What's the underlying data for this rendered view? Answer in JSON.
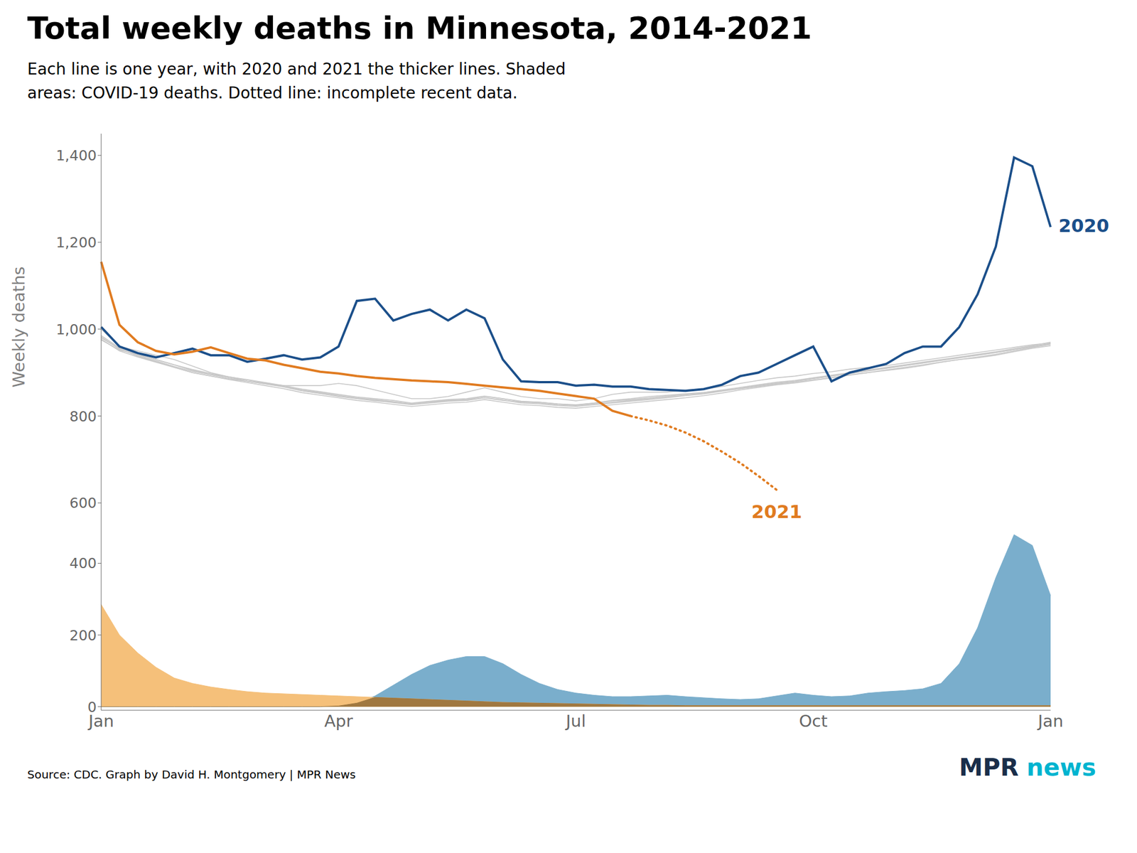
{
  "chart_data": [
    {
      "type": "line",
      "title": "Total weekly deaths in Minnesota, 2014-2021",
      "subtitle": "Each line is one year, with 2020 and 2021 the thicker lines. Shaded\nareas: COVID-19 deaths. Dotted line: incomplete recent data.",
      "ylabel": "Weekly deaths",
      "tick_labels": "y",
      "grid": false,
      "categories": [
        null,
        null,
        null,
        null,
        null,
        null,
        null,
        null,
        null,
        null,
        null,
        null,
        null,
        null,
        null,
        null,
        null,
        null,
        null,
        null,
        null,
        null,
        null,
        null,
        null,
        null,
        null,
        null,
        null,
        null,
        null,
        null,
        null,
        null,
        null,
        null,
        null,
        null,
        null,
        null,
        null,
        null,
        null,
        null,
        null,
        null,
        null,
        null,
        null,
        null,
        null,
        null,
        null
      ],
      "ylim": [
        560,
        1450
      ],
      "yticks": [
        600,
        800,
        {
          "value": 1000,
          "label": "1,000"
        },
        {
          "value": 1200,
          "label": "1,200"
        },
        {
          "value": 1400,
          "label": "1,400"
        }
      ],
      "series": [
        {
          "color": "#c8c8c8",
          "values": [
            1000,
            960,
            950,
            940,
            930,
            915,
            900,
            890,
            880,
            875,
            870,
            870,
            870,
            875,
            870,
            860,
            850,
            840,
            840,
            845,
            855,
            865,
            855,
            845,
            840,
            840,
            835,
            840,
            850,
            855,
            855,
            855,
            860,
            862,
            868,
            875,
            882,
            888,
            892,
            898,
            902,
            908,
            912,
            916,
            922,
            928,
            934,
            940,
            946,
            952,
            958,
            964,
            968
          ]
        },
        {
          "color": "#c8c8c8",
          "values": [
            975,
            952,
            942,
            930,
            918,
            905,
            896,
            890,
            883,
            876,
            868,
            858,
            852,
            845,
            840,
            835,
            832,
            828,
            832,
            836,
            838,
            845,
            840,
            833,
            832,
            828,
            825,
            830,
            836,
            840,
            845,
            848,
            851,
            854,
            858,
            863,
            868,
            874,
            878,
            883,
            888,
            894,
            900,
            905,
            910,
            916,
            924,
            930,
            934,
            940,
            948,
            956,
            962
          ]
        },
        {
          "color": "#c8c8c8",
          "values": [
            980,
            955,
            938,
            925,
            912,
            900,
            892,
            885,
            880,
            874,
            868,
            860,
            854,
            848,
            842,
            838,
            833,
            828,
            832,
            836,
            836,
            842,
            836,
            832,
            830,
            826,
            824,
            828,
            832,
            836,
            840,
            844,
            848,
            852,
            858,
            864,
            870,
            876,
            880,
            886,
            892,
            898,
            904,
            910,
            916,
            922,
            928,
            934,
            940,
            946,
            953,
            960,
            966
          ]
        },
        {
          "color": "#c8c8c8",
          "values": [
            985,
            957,
            943,
            930,
            918,
            907,
            898,
            890,
            884,
            877,
            870,
            862,
            856,
            850,
            844,
            840,
            836,
            830,
            834,
            838,
            840,
            846,
            840,
            834,
            832,
            828,
            826,
            830,
            835,
            838,
            842,
            846,
            850,
            854,
            860,
            866,
            872,
            878,
            882,
            888,
            894,
            900,
            906,
            912,
            918,
            924,
            930,
            936,
            942,
            948,
            955,
            962,
            970
          ]
        },
        {
          "color": "#c8c8c8",
          "values": [
            982,
            954,
            940,
            927,
            914,
            903,
            895,
            887,
            880,
            874,
            867,
            858,
            852,
            846,
            840,
            836,
            831,
            826,
            830,
            834,
            836,
            842,
            837,
            830,
            828,
            824,
            822,
            826,
            830,
            834,
            838,
            842,
            847,
            851,
            857,
            863,
            869,
            875,
            880,
            886,
            892,
            898,
            904,
            910,
            916,
            922,
            928,
            934,
            940,
            946,
            953,
            960,
            967
          ]
        },
        {
          "color": "#c8c8c8",
          "values": [
            977,
            950,
            936,
            924,
            912,
            900,
            892,
            884,
            877,
            870,
            863,
            854,
            848,
            842,
            836,
            832,
            827,
            822,
            826,
            830,
            832,
            838,
            832,
            826,
            824,
            820,
            818,
            822,
            826,
            830,
            834,
            838,
            842,
            847,
            853,
            860,
            866,
            872,
            876,
            882,
            888,
            895,
            900,
            906,
            912,
            918,
            924,
            930,
            936,
            942,
            950,
            958,
            965
          ]
        },
        {
          "name": "2020",
          "color": "#1b4f8a",
          "values": [
            1005,
            960,
            945,
            935,
            945,
            955,
            940,
            940,
            925,
            932,
            940,
            930,
            935,
            960,
            1065,
            1070,
            1020,
            1035,
            1045,
            1020,
            1045,
            1025,
            930,
            880,
            878,
            878,
            870,
            872,
            868,
            868,
            862,
            860,
            858,
            862,
            872,
            892,
            900,
            920,
            940,
            960,
            880,
            900,
            910,
            920,
            945,
            960,
            960,
            1005,
            1080,
            1190,
            1395,
            1375,
            1235
          ]
        },
        {
          "name": "2021",
          "color": "#e07b20",
          "values": [
            1155,
            1010,
            970,
            950,
            942,
            948,
            958,
            945,
            932,
            928,
            918,
            910,
            902,
            898,
            892,
            888,
            885,
            882,
            880,
            878,
            874,
            870,
            866,
            862,
            858,
            852,
            846,
            840,
            812,
            800,
            null,
            null,
            null,
            null,
            null,
            null,
            null,
            null,
            null,
            null,
            null,
            null,
            null,
            null,
            null,
            null,
            null,
            null,
            null,
            null,
            null,
            null,
            null
          ]
        },
        {
          "name": "2021",
          "color": "#e07b20",
          "line_style": "dotted",
          "values": [
            null,
            null,
            null,
            null,
            null,
            null,
            null,
            null,
            null,
            null,
            null,
            null,
            null,
            null,
            null,
            null,
            null,
            null,
            null,
            null,
            null,
            null,
            null,
            null,
            null,
            null,
            null,
            null,
            null,
            800,
            790,
            778,
            762,
            742,
            718,
            692,
            662,
            630,
            null,
            null,
            null,
            null,
            null,
            null,
            null,
            null,
            null,
            null,
            null,
            null,
            null,
            null,
            null
          ]
        }
      ]
    },
    {
      "type": "area",
      "grid": false,
      "source": "Source: CDC. Graph by David H. Montgomery | MPR News",
      "annotations": [
        {
          "text": "MPR",
          "color": "#1a2e4a"
        },
        {
          "text": "news",
          "color": "#00b4d0"
        }
      ],
      "categories": [
        "Jan",
        null,
        null,
        null,
        null,
        null,
        null,
        null,
        null,
        null,
        null,
        null,
        null,
        "Apr",
        null,
        null,
        null,
        null,
        null,
        null,
        null,
        null,
        null,
        null,
        null,
        null,
        "Jul",
        null,
        null,
        null,
        null,
        null,
        null,
        null,
        null,
        null,
        null,
        null,
        null,
        "Oct",
        null,
        null,
        null,
        null,
        null,
        null,
        null,
        null,
        null,
        null,
        null,
        null,
        "Jan"
      ],
      "ylim": [
        -10,
        520
      ],
      "yticks": [
        0,
        200,
        400
      ],
      "series": [
        {
          "color": "#7aaecc",
          "values": [
            0,
            0,
            0,
            0,
            0,
            0,
            0,
            0,
            0,
            0,
            0,
            0,
            0,
            2,
            10,
            30,
            60,
            90,
            115,
            130,
            140,
            140,
            120,
            90,
            65,
            48,
            38,
            32,
            28,
            28,
            30,
            32,
            28,
            25,
            22,
            20,
            22,
            30,
            38,
            32,
            28,
            30,
            38,
            42,
            45,
            50,
            65,
            120,
            220,
            360,
            480,
            450,
            310
          ]
        },
        {
          "color": "#f5c07a",
          "values": [
            285,
            200,
            150,
            110,
            80,
            65,
            55,
            48,
            42,
            38,
            36,
            34,
            32,
            30,
            28,
            26,
            24,
            22,
            20,
            18,
            16,
            14,
            12,
            11,
            10,
            9,
            8,
            7,
            6,
            5,
            4,
            4,
            3,
            3,
            3,
            3,
            3,
            3,
            3,
            3,
            3,
            3,
            3,
            3,
            3,
            3,
            3,
            3,
            3,
            3,
            3,
            3,
            3
          ]
        },
        {
          "color": "#a07840",
          "values": [
            0,
            0,
            0,
            0,
            0,
            0,
            0,
            0,
            0,
            0,
            0,
            0,
            0,
            2,
            10,
            26,
            24,
            22,
            20,
            18,
            16,
            14,
            12,
            11,
            10,
            9,
            8,
            7,
            6,
            5,
            4,
            4,
            3,
            3,
            3,
            3,
            3,
            3,
            3,
            3,
            3,
            3,
            3,
            3,
            3,
            3,
            3,
            3,
            3,
            3,
            3,
            3,
            3
          ]
        }
      ]
    }
  ]
}
